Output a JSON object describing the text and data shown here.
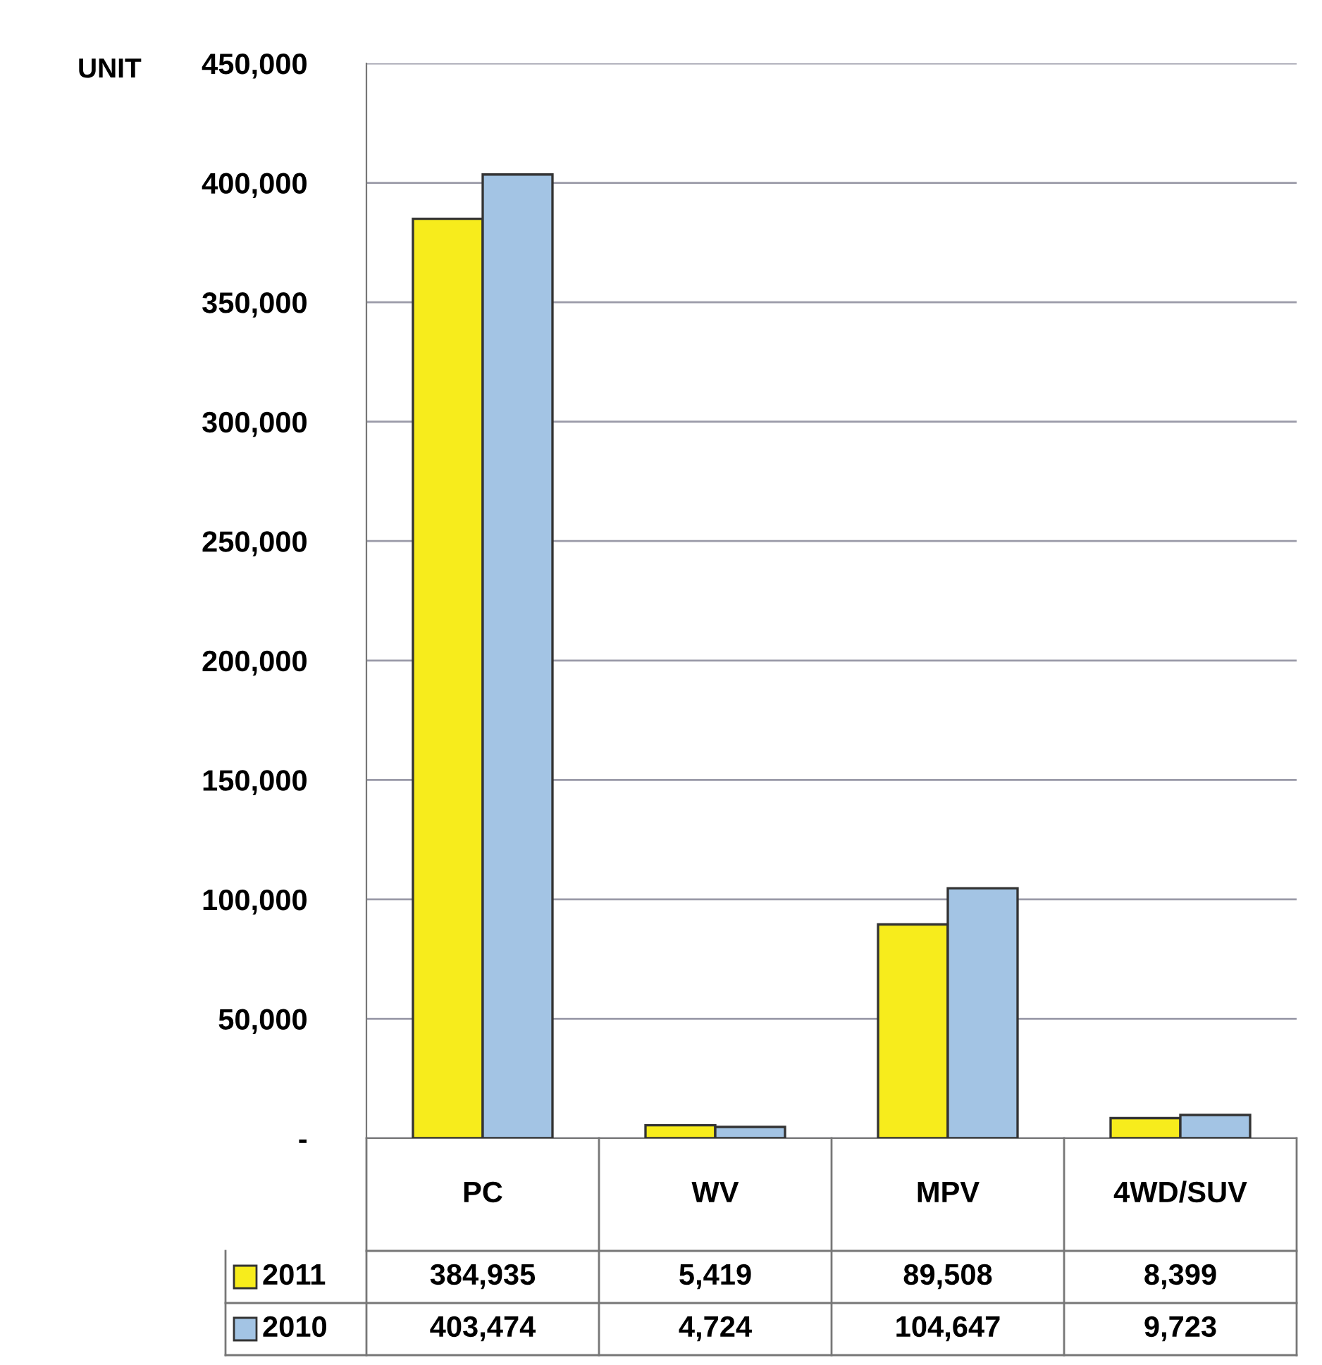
{
  "chart_data": {
    "type": "bar",
    "ylabel": "UNIT",
    "categories": [
      "PC",
      "WV",
      "MPV",
      "4WD/SUV"
    ],
    "series": [
      {
        "name": "2011",
        "color": "#f7ec1c",
        "values": [
          384935,
          5419,
          89508,
          8399
        ],
        "value_labels": [
          "384,935",
          "5,419",
          "89,508",
          "8,399"
        ]
      },
      {
        "name": "2010",
        "color": "#a3c4e4",
        "values": [
          403474,
          4724,
          104647,
          9723
        ],
        "value_labels": [
          "403,474",
          "4,724",
          "104,647",
          "9,723"
        ]
      }
    ],
    "ylim": [
      0,
      450000
    ],
    "yticks": [
      {
        "value": 0,
        "label": "-"
      },
      {
        "value": 50000,
        "label": "50,000"
      },
      {
        "value": 100000,
        "label": "100,000"
      },
      {
        "value": 150000,
        "label": "150,000"
      },
      {
        "value": 200000,
        "label": "200,000"
      },
      {
        "value": 250000,
        "label": "250,000"
      },
      {
        "value": 300000,
        "label": "300,000"
      },
      {
        "value": 350000,
        "label": "350,000"
      },
      {
        "value": 400000,
        "label": "400,000"
      },
      {
        "value": 450000,
        "label": "450,000"
      }
    ],
    "grid": "y",
    "legend": "bottom"
  }
}
